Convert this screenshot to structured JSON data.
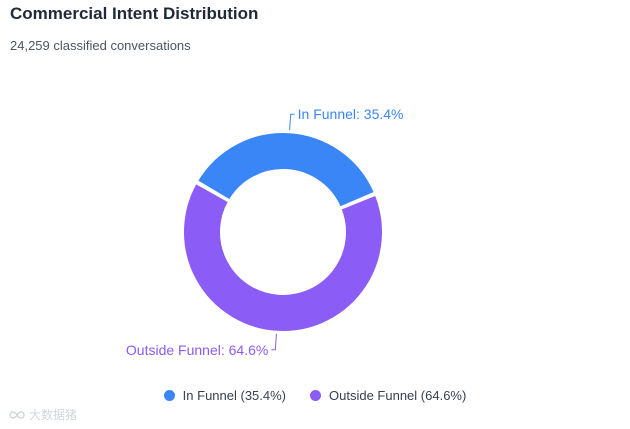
{
  "chart_data": {
    "type": "pie",
    "title": "Commercial Intent Distribution",
    "subtitle": "24,259 classified conversations",
    "donut": true,
    "categories": [
      "In Funnel",
      "Outside Funnel"
    ],
    "values": [
      35.4,
      64.6
    ],
    "value_unit": "%",
    "data_labels": [
      "In Funnel: 35.4%",
      "Outside Funnel: 64.6%"
    ],
    "legend_labels": [
      "In Funnel (35.4%)",
      "Outside Funnel (64.6%)"
    ],
    "legend_position": "bottom-center",
    "colors": [
      "#3b86f6",
      "#8b5cf6"
    ]
  },
  "watermark": {
    "icon": "loop-icon",
    "text": "大数据猪"
  }
}
